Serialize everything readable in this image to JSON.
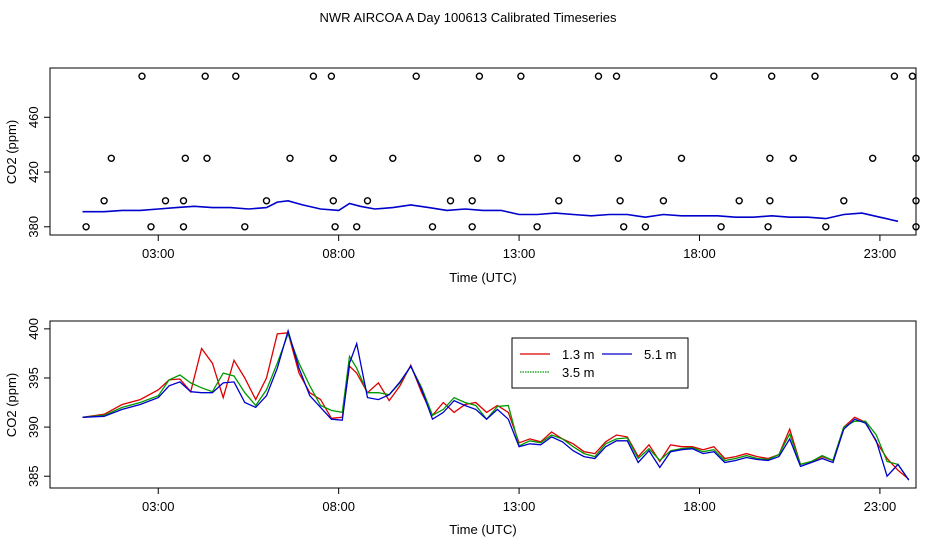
{
  "figure": {
    "title": "NWR AIRCOA A  Day 100613  Calibrated Timeseries"
  },
  "chart_data": [
    {
      "type": "line",
      "panel": "top",
      "xlabel": "Time (UTC)",
      "ylabel": "CO2 (ppm)",
      "xlim": [
        0,
        24
      ],
      "ylim": [
        374,
        496
      ],
      "x_ticks": [
        3,
        8,
        13,
        18,
        23
      ],
      "x_tick_labels": [
        "03:00",
        "08:00",
        "13:00",
        "18:00",
        "23:00"
      ],
      "y_ticks": [
        380,
        420,
        460
      ],
      "y_tick_labels": [
        "380",
        "420",
        "460"
      ],
      "grid": false,
      "colors": {
        "line": "#0000cc",
        "markers": "#000000"
      },
      "series": [
        {
          "color": "#0000cc",
          "x": [
            0.9,
            1.5,
            2.0,
            2.5,
            3.0,
            3.5,
            4.0,
            4.5,
            5.0,
            5.5,
            6.0,
            6.3,
            6.6,
            7.0,
            7.5,
            8.0,
            8.3,
            8.6,
            9.0,
            9.5,
            10.0,
            10.5,
            11.0,
            11.5,
            12.0,
            12.5,
            13.0,
            13.5,
            14.0,
            14.5,
            15.0,
            15.5,
            16.0,
            16.5,
            17.0,
            17.5,
            18.0,
            18.5,
            19.0,
            19.5,
            20.0,
            20.5,
            21.0,
            21.5,
            22.0,
            22.5,
            23.0,
            23.5
          ],
          "y": [
            391,
            391,
            392,
            392,
            393,
            394,
            395,
            394,
            394,
            393,
            394,
            398,
            399,
            396,
            393,
            392,
            397,
            395,
            393,
            394,
            396,
            394,
            392,
            393,
            392,
            392,
            389,
            389,
            390,
            389,
            388,
            389,
            389,
            387,
            389,
            388,
            388,
            388,
            387,
            387,
            388,
            387,
            387,
            386,
            389,
            390,
            387,
            384
          ]
        }
      ],
      "markers": {
        "symbol": "circle",
        "x": [
          2.55,
          4.3,
          5.15,
          7.3,
          7.8,
          10.15,
          11.9,
          13.05,
          15.2,
          15.7,
          18.4,
          20.0,
          21.2,
          23.4,
          23.9,
          1.7,
          3.75,
          4.35,
          6.65,
          7.85,
          9.5,
          11.85,
          12.5,
          14.6,
          15.75,
          17.5,
          19.95,
          20.6,
          22.8,
          24.0,
          1.5,
          3.2,
          3.7,
          6.0,
          7.85,
          8.8,
          11.1,
          11.7,
          14.1,
          15.8,
          17.0,
          19.1,
          19.95,
          22.0,
          24.0,
          1.0,
          2.8,
          3.7,
          5.4,
          7.9,
          8.5,
          10.6,
          11.7,
          13.5,
          15.9,
          16.5,
          18.6,
          19.9,
          21.5,
          24.0
        ],
        "y": [
          490,
          490,
          490,
          490,
          490,
          490,
          490,
          490,
          490,
          490,
          490,
          490,
          490,
          490,
          490,
          430,
          430,
          430,
          430,
          430,
          430,
          430,
          430,
          430,
          430,
          430,
          430,
          430,
          430,
          430,
          399,
          399,
          399,
          399,
          399,
          399,
          399,
          399,
          399,
          399,
          399,
          399,
          399,
          399,
          399,
          380,
          380,
          380,
          380,
          380,
          380,
          380,
          380,
          380,
          380,
          380,
          380,
          380,
          380,
          380
        ]
      }
    },
    {
      "type": "line",
      "panel": "bottom",
      "xlabel": "Time (UTC)",
      "ylabel": "CO2 (ppm)",
      "xlim": [
        0,
        24
      ],
      "ylim": [
        383.8,
        400.8
      ],
      "x_ticks": [
        3,
        8,
        13,
        18,
        23
      ],
      "x_tick_labels": [
        "03:00",
        "08:00",
        "13:00",
        "18:00",
        "23:00"
      ],
      "y_ticks": [
        385,
        390,
        395,
        400
      ],
      "y_tick_labels": [
        "385",
        "390",
        "395",
        "400"
      ],
      "grid": false,
      "legend_position": "top-center",
      "x": [
        0.9,
        1.5,
        2.0,
        2.5,
        3.0,
        3.3,
        3.6,
        3.9,
        4.2,
        4.5,
        4.8,
        5.1,
        5.4,
        5.7,
        6.0,
        6.3,
        6.6,
        6.9,
        7.2,
        7.5,
        7.8,
        8.1,
        8.3,
        8.5,
        8.8,
        9.1,
        9.4,
        9.7,
        10.0,
        10.3,
        10.6,
        10.9,
        11.2,
        11.5,
        11.8,
        12.1,
        12.4,
        12.7,
        13.0,
        13.3,
        13.6,
        13.9,
        14.2,
        14.5,
        14.8,
        15.1,
        15.4,
        15.7,
        16.0,
        16.3,
        16.6,
        16.9,
        17.2,
        17.5,
        17.8,
        18.1,
        18.4,
        18.7,
        19.0,
        19.3,
        19.6,
        19.9,
        20.2,
        20.5,
        20.8,
        21.1,
        21.4,
        21.7,
        22.0,
        22.3,
        22.6,
        22.9,
        23.2,
        23.5,
        23.8
      ],
      "series": [
        {
          "name": "1.3 m",
          "color": "#dd0000",
          "values": [
            391,
            391.3,
            392.3,
            392.8,
            393.8,
            394.8,
            394.9,
            393.6,
            398,
            396.5,
            393,
            396.8,
            395,
            392.8,
            395,
            399.5,
            399.6,
            395.5,
            393.5,
            392.8,
            390.9,
            391,
            396.2,
            395.5,
            393.5,
            394.5,
            392.7,
            394.2,
            396.3,
            393.5,
            391.2,
            392.5,
            391.5,
            392.3,
            392.5,
            391.5,
            392.2,
            391.5,
            388.4,
            388.8,
            388.5,
            389.5,
            388.8,
            388.3,
            387.5,
            387.3,
            388.5,
            389.2,
            389,
            387,
            388.2,
            386.5,
            388.2,
            388,
            388,
            387.7,
            388,
            386.8,
            387,
            387.3,
            387,
            386.8,
            387.2,
            389.8,
            386.2,
            386.5,
            387.0,
            386.6,
            390,
            391,
            390.5,
            388.5,
            386.8,
            385.6,
            384.7
          ]
        },
        {
          "name": "3.5 m",
          "color": "#009900",
          "values": [
            391,
            391.2,
            392,
            392.5,
            393.2,
            394.8,
            395.3,
            394.5,
            394,
            393.6,
            395.5,
            395.2,
            393.5,
            392.2,
            393.8,
            396.5,
            399.5,
            396.5,
            394.2,
            392.2,
            391.7,
            391.5,
            397.2,
            396,
            393.5,
            393.5,
            393.3,
            394.5,
            396.2,
            394,
            391.2,
            391.8,
            393,
            392.5,
            392.2,
            390.8,
            392.1,
            392.2,
            388.1,
            388.6,
            388.4,
            389.2,
            388.8,
            388.0,
            387.3,
            387,
            388.3,
            388.8,
            388.9,
            386.8,
            387.8,
            386.6,
            387.6,
            387.8,
            387.9,
            387.5,
            387.7,
            386.6,
            386.8,
            387.1,
            386.8,
            386.7,
            387.2,
            389.3,
            386.2,
            386.5,
            387.1,
            386.6,
            390,
            390.6,
            390.6,
            389.2,
            386.5,
            386.2,
            384.6
          ]
        },
        {
          "name": "5.1 m",
          "color": "#0000cc",
          "values": [
            391,
            391.1,
            391.8,
            392.3,
            393,
            394.2,
            394.6,
            393.6,
            393.5,
            393.5,
            394.5,
            394.6,
            392.5,
            392,
            393.2,
            396,
            399.8,
            396,
            393.2,
            392,
            390.8,
            390.7,
            396.5,
            398.5,
            393,
            392.8,
            393.3,
            394.6,
            396.2,
            393.8,
            390.8,
            391.5,
            392.7,
            392.2,
            391.8,
            390.8,
            391.8,
            390.8,
            388,
            388.3,
            388.2,
            389,
            388.5,
            387.6,
            387.0,
            386.8,
            388,
            388.6,
            388.6,
            386.4,
            387.6,
            385.9,
            387.5,
            387.7,
            387.8,
            387.3,
            387.5,
            386.4,
            386.6,
            386.9,
            386.7,
            386.6,
            387.0,
            388.8,
            386.0,
            386.4,
            386.8,
            386.4,
            389.8,
            390.8,
            390.4,
            388.6,
            385.0,
            386.2,
            384.6
          ]
        }
      ],
      "legend": [
        "1.3 m",
        "3.5 m",
        "5.1 m"
      ]
    }
  ]
}
